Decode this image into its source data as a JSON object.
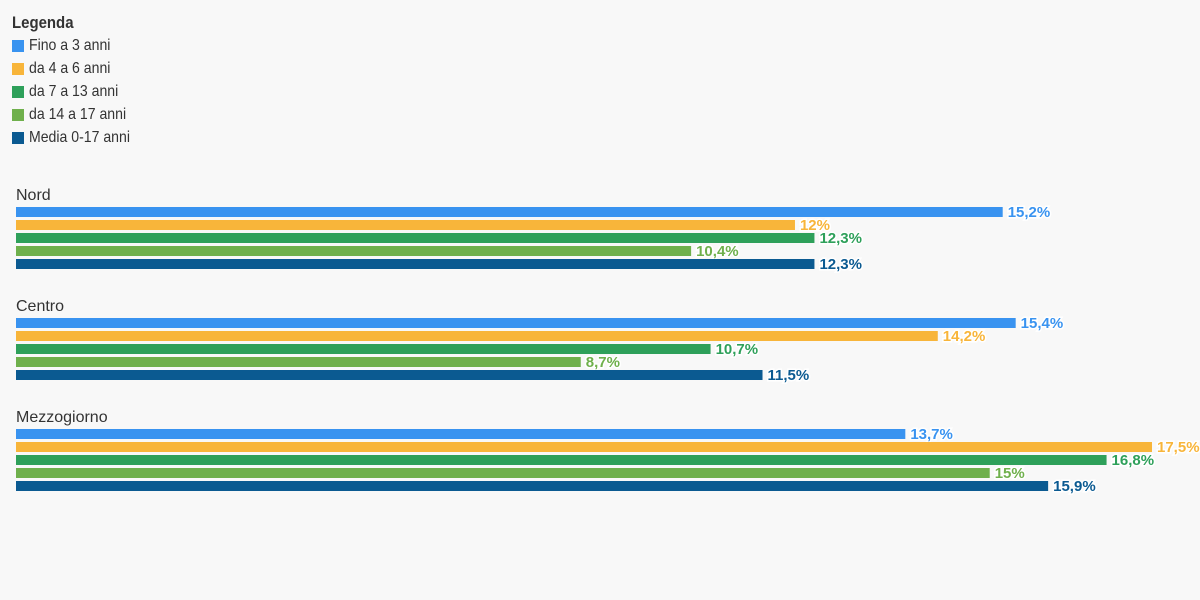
{
  "legend": {
    "title": "Legenda",
    "items": [
      {
        "label": "Fino a 3 anni",
        "color": "#3993f0"
      },
      {
        "label": "da 4 a 6 anni",
        "color": "#f8b53a"
      },
      {
        "label": "da 7 a 13 anni",
        "color": "#2ea05a"
      },
      {
        "label": "da 14 a 17 anni",
        "color": "#6fb04c"
      },
      {
        "label": "Media 0-17 anni",
        "color": "#0b5a91"
      }
    ]
  },
  "chart_data": {
    "type": "bar",
    "orientation": "horizontal",
    "categories": [
      "Nord",
      "Centro",
      "Mezzogiorno"
    ],
    "series": [
      {
        "name": "Fino a 3 anni",
        "color": "#3993f0",
        "values": [
          15.2,
          15.4,
          13.7
        ],
        "labels": [
          "15,2%",
          "15,4%",
          "13,7%"
        ]
      },
      {
        "name": "da 4 a 6 anni",
        "color": "#f8b53a",
        "values": [
          12,
          14.2,
          17.5
        ],
        "labels": [
          "12%",
          "14,2%",
          "17,5%"
        ]
      },
      {
        "name": "da 7 a 13 anni",
        "color": "#2ea05a",
        "values": [
          12.3,
          10.7,
          16.8
        ],
        "labels": [
          "12,3%",
          "10,7%",
          "16,8%"
        ]
      },
      {
        "name": "da 14 a 17 anni",
        "color": "#6fb04c",
        "values": [
          10.4,
          8.7,
          15
        ],
        "labels": [
          "10,4%",
          "8,7%",
          "15%"
        ]
      },
      {
        "name": "Media 0-17 anni",
        "color": "#0b5a91",
        "values": [
          12.3,
          11.5,
          15.9
        ],
        "labels": [
          "12,3%",
          "11,5%",
          "15,9%"
        ]
      }
    ],
    "xlim": [
      0,
      17.5
    ],
    "grid": false,
    "legend_position": "top-left"
  }
}
